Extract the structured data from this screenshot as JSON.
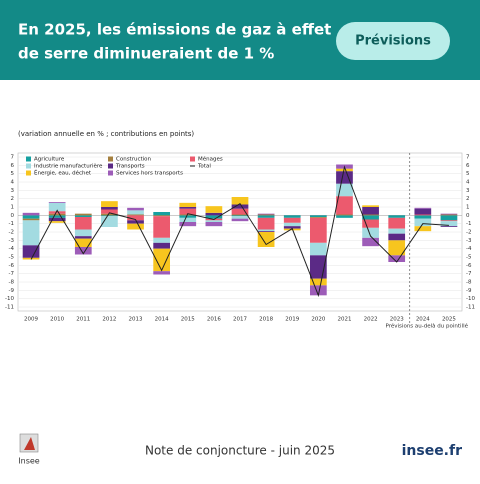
{
  "header": {
    "title_lines": [
      "En 2025, les émissions de gaz à effet",
      "de serre diminueraient de 1 %"
    ],
    "badge": "Prévisions"
  },
  "chart_data": {
    "type": "bar",
    "subtitle": "(variation annuelle en % ; contributions en points)",
    "categories": [
      "2009",
      "2010",
      "2011",
      "2012",
      "2013",
      "2014",
      "2015",
      "2016",
      "2017",
      "2018",
      "2019",
      "2020",
      "2021",
      "2022",
      "2023",
      "2024",
      "2025"
    ],
    "series": [
      {
        "name": "Agriculture",
        "color": "#16a0a0",
        "values": [
          -0.4,
          -0.3,
          -0.2,
          -0.1,
          0,
          0.4,
          -0.3,
          -0.4,
          -0.1,
          -0.3,
          -0.3,
          -0.2,
          -0.3,
          -0.5,
          -0.3,
          -0.4,
          -0.6
        ]
      },
      {
        "name": "Construction",
        "color": "#a5803f",
        "values": [
          -0.2,
          0.2,
          0.2,
          0.2,
          0.1,
          -0.1,
          0.1,
          0,
          0.1,
          0.1,
          0,
          -0.1,
          0.1,
          0.1,
          0,
          0,
          0.1
        ]
      },
      {
        "name": "Ménages",
        "color": "#ec5a6e",
        "values": [
          0,
          0.3,
          -1.5,
          0.5,
          -0.6,
          -2.6,
          0.7,
          -0.2,
          0.7,
          -1.4,
          -0.6,
          -3.0,
          2.2,
          -1.0,
          -1.3,
          0.1,
          -0.1
        ]
      },
      {
        "name": "Industrie manufacturière",
        "color": "#a3dbe1",
        "values": [
          -3.0,
          1.0,
          -0.8,
          -1.3,
          0.5,
          -0.6,
          -0.5,
          -0.2,
          -0.3,
          -0.2,
          -0.4,
          -1.5,
          1.5,
          -1.2,
          -0.6,
          -0.9,
          -0.6
        ]
      },
      {
        "name": "Transports",
        "color": "#5b2a86",
        "values": [
          -1.5,
          -0.4,
          -0.3,
          0.3,
          -0.4,
          -0.7,
          0.2,
          0.3,
          0.5,
          -0.1,
          -0.3,
          -2.8,
          1.5,
          0.9,
          -0.8,
          0.7,
          -0.1
        ]
      },
      {
        "name": "Total",
        "type": "line",
        "color": "#222222",
        "values": [
          -5.3,
          0.6,
          -4.6,
          0.3,
          -0.5,
          -6.6,
          0.2,
          -0.5,
          1.4,
          -3.5,
          -1.6,
          -9.6,
          5.8,
          -2.5,
          -5.6,
          -1.0,
          -1.2
        ]
      },
      {
        "name": "Énergie, eau, déchet",
        "color": "#f7c51e",
        "values": [
          -0.2,
          -0.2,
          -1.0,
          0.7,
          -0.7,
          -2.7,
          0.5,
          0.8,
          0.9,
          -1.8,
          -0.2,
          -0.8,
          0.3,
          0.2,
          -1.8,
          -0.6,
          0
        ]
      },
      {
        "name": "Services hors transports",
        "color": "#9d5cb8",
        "values": [
          0.3,
          0.1,
          -0.9,
          0,
          0.3,
          -0.4,
          -0.5,
          -0.5,
          -0.3,
          0.1,
          0,
          -1.2,
          0.5,
          -1.0,
          -0.8,
          0.1,
          0.1
        ]
      }
    ],
    "ylim": [
      -11,
      7
    ],
    "yticks": [
      -11,
      -10,
      -9,
      -8,
      -7,
      -6,
      -5,
      -4,
      -3,
      -2,
      -1,
      0,
      1,
      2,
      3,
      4,
      5,
      6,
      7
    ],
    "forecast_note": "Prévisions au-delà du pointillé",
    "legend": "top-left"
  },
  "footer": {
    "logo": "Insee",
    "note": "Note de conjoncture - juin 2025",
    "site": "insee.fr"
  }
}
